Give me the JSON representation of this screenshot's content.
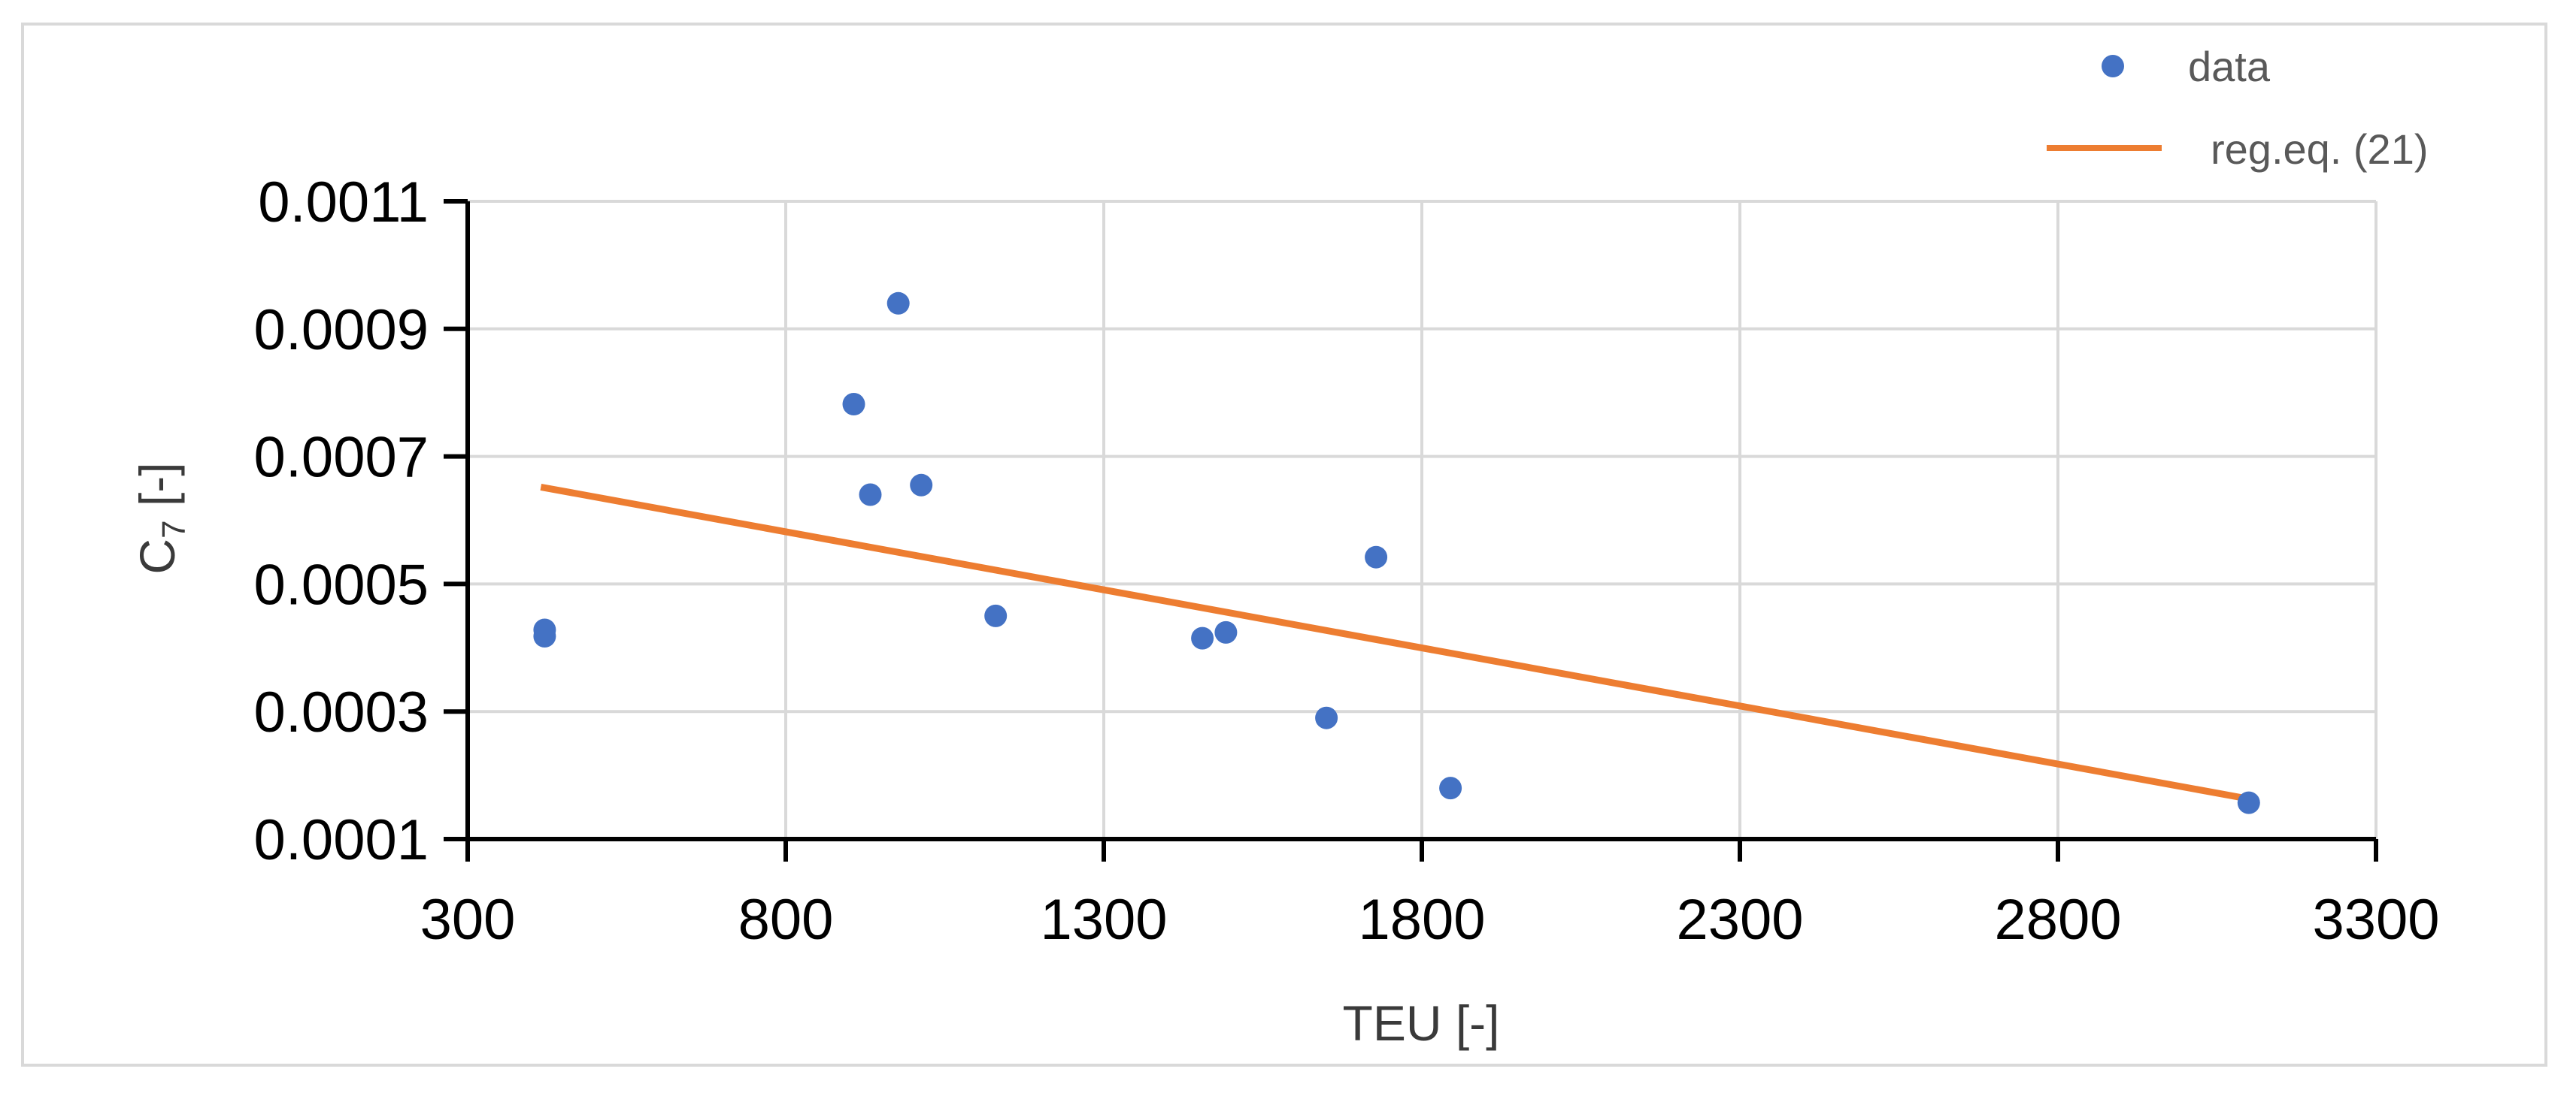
{
  "chart_data": {
    "type": "scatter",
    "xlabel": "TEU [-]",
    "ylabel": "C",
    "ylabel_subscript": "7",
    "ylabel_suffix": " [-]",
    "xlim": [
      300,
      3300
    ],
    "ylim": [
      0.0001,
      0.0011
    ],
    "xticks": [
      300,
      800,
      1300,
      1800,
      2300,
      2800,
      3300
    ],
    "xtick_labels": [
      "300",
      "800",
      "1300",
      "1800",
      "2300",
      "2800",
      "3300"
    ],
    "yticks": [
      0.0001,
      0.0003,
      0.0005,
      0.0007,
      0.0009,
      0.0011
    ],
    "ytick_labels": [
      "0.0001",
      "0.0003",
      "0.0005",
      "0.0007",
      "0.0009",
      "0.0011"
    ],
    "grid": true,
    "legend_position": "top-right",
    "series": [
      {
        "name": "data",
        "kind": "scatter",
        "color": "#4472c4",
        "points": [
          [
            421,
            0.000428
          ],
          [
            421,
            0.000418
          ],
          [
            907,
            0.000782
          ],
          [
            933,
            0.00064
          ],
          [
            977,
            0.00094
          ],
          [
            1013,
            0.000655
          ],
          [
            1130,
            0.00045
          ],
          [
            1455,
            0.000415
          ],
          [
            1492,
            0.000424
          ],
          [
            1650,
            0.00029
          ],
          [
            1728,
            0.000542
          ],
          [
            1845,
            0.00018
          ],
          [
            3100,
            0.000157
          ]
        ]
      },
      {
        "name": "reg.eq. (21)",
        "kind": "line",
        "color": "#ed7d31",
        "points": [
          [
            415,
            0.000652
          ],
          [
            3100,
            0.000163
          ]
        ]
      }
    ]
  }
}
